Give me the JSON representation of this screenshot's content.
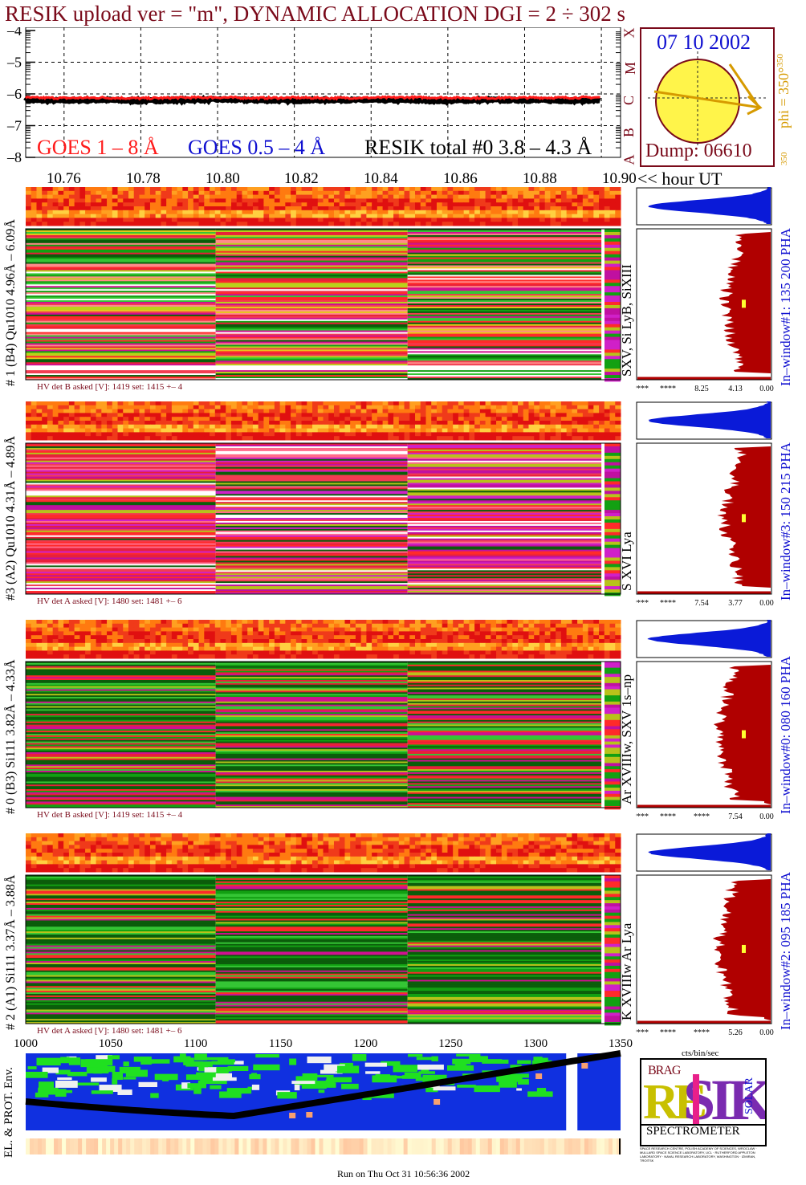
{
  "header": {
    "title": "RESIK upload ver = \"m\", DYNAMIC ALLOCATION  DGI =   2 ÷ 302 s",
    "date": "07 10 2002",
    "dump": "Dump: 06610",
    "phi_label": "phi = 350°",
    "phi_sup": "350",
    "phi_bottom": "350",
    "goes_scale": [
      "X",
      "M",
      "C",
      "B",
      "A"
    ]
  },
  "colors": {
    "maroon": "#7a0a1a",
    "goes_red": "#ff1a1a",
    "goes_blue": "#1010d0",
    "phi_orange": "#d69a00",
    "sun": "#fff44a",
    "pha_blue": "#0a1ad8",
    "pha_red": "#b00000"
  },
  "goes_legend": {
    "goes18": "GOES 1 – 8 Å",
    "goes054": "GOES 0.5 – 4 Å",
    "resik_total": "RESIK total #0  3.8 – 4.3 Å"
  },
  "time_axis": {
    "ticks": [
      "10.76",
      "10.78",
      "10.80",
      "10.82",
      "10.84",
      "10.86",
      "10.88",
      "10.90"
    ],
    "unit": "<< hour UT"
  },
  "channels": [
    {
      "ylabel": "# 1 (B4) Qu1010 4.96Å – 6.09Å",
      "line_label": "SXV, Si LyB, SiXIII",
      "hv": "HV det B asked [V]:  1419 set:  1415 +–    4",
      "window": "In–window#1:  135 200 PHA",
      "axis": [
        "****",
        "****",
        "8.25",
        "4.13",
        "0.00"
      ]
    },
    {
      "ylabel": "#3 (A2) Qu1010  4.31Å – 4.89Å",
      "line_label": "S XVI Lya",
      "hv": "HV det A asked [V]:  1480 set:  1481 +–    6",
      "window": "In–window#3:  150 215 PHA",
      "axis": [
        "****",
        "****",
        "7.54",
        "3.77",
        "0.00"
      ]
    },
    {
      "ylabel": "# 0 (B3) Si111  3.82Å – 4.33Å",
      "line_label": "Ar XVIIIw,  SXV 1s–np",
      "hv": "HV det B asked [V]:  1419 set:  1415 +–    4",
      "window": "In–window#0:  080 160 PHA",
      "axis": [
        "****",
        "****",
        "****",
        "7.54",
        "0.00"
      ]
    },
    {
      "ylabel": "# 2 (A1) Si111  3.37Å – 3.88Å",
      "line_label": "K XVIIIw  Ar Lya",
      "hv": "HV det A asked [V]:  1480 set:  1481 +–    6",
      "window": "In–window#2:  095 185 PHA",
      "axis": [
        "****",
        "****",
        "****",
        "5.26",
        "0.00"
      ]
    }
  ],
  "env": {
    "ylabel": "EL. & PROT. Env.",
    "ticks": [
      "1000",
      "1050",
      "1100",
      "1150",
      "1200",
      "1250",
      "1300",
      "1350"
    ],
    "unit": "cts/bin/sec"
  },
  "logo": {
    "top": "BRAG",
    "left": "RE",
    "mid": "SIK",
    "right": "SOLAR",
    "bottom": "SPECTROMETER",
    "fine_print": "SPACE RESEARCH CENTRE, POLISH ACADEMY OF SCIENCES, WROCLAW · MULLARD SPACE SCIENCE LABORATORY, UCL · RUTHERFORD APPLETON LABORATORY · NAVAL RESEARCH LABORATORY, WASHINGTON · IZMIRAN, TROITSK"
  },
  "footer": "Run on Thu Oct 31 10:56:36 2002",
  "chart_data": [
    {
      "type": "line",
      "title": "",
      "x": [
        10.75,
        10.76,
        10.77,
        10.78,
        10.79,
        10.8,
        10.81,
        10.82,
        10.83,
        10.84,
        10.85,
        10.86,
        10.87,
        10.88,
        10.89,
        10.9
      ],
      "series": [
        {
          "name": "GOES 1 – 8 Å",
          "values": [
            -6.12,
            -6.13,
            -6.12,
            -6.14,
            -6.12,
            -6.11,
            -6.13,
            -6.12,
            -6.13,
            -6.12,
            -6.11,
            -6.12,
            -6.13,
            -6.12,
            -6.12,
            -6.11
          ]
        },
        {
          "name": "RESIK total #0  3.8 – 4.3 Å",
          "values": [
            -6.2,
            -6.21,
            -6.19,
            -6.22,
            -6.2,
            -6.18,
            -6.2,
            -6.21,
            -6.19,
            -6.2,
            -6.2,
            -6.22,
            -6.19,
            -6.2,
            -6.21,
            -6.2
          ]
        }
      ],
      "yticks": [
        "–4",
        "–5",
        "–6",
        "–7",
        "–8"
      ],
      "ylim": [
        -8,
        -3.9
      ],
      "xlim": [
        10.75,
        10.905
      ],
      "grid": true
    },
    {
      "type": "heatmap",
      "title": "",
      "xlim": [
        10.75,
        10.905
      ],
      "xlabel": "hour UT",
      "panels": [
        "# 1 (B4) Qu1010 4.96Å – 6.09Å",
        "#3 (A2) Qu1010  4.31Å – 4.89Å",
        "# 0 (B3) Si111  3.82Å – 4.33Å",
        "# 2 (A1) Si111  3.37Å – 3.88Å"
      ],
      "time_segments_hour_ut": [
        10.75,
        10.7995,
        10.8495,
        10.9
      ]
    },
    {
      "type": "area",
      "title": "",
      "xlabel": "cts/bin/sec",
      "panels": [
        {
          "window": "In–window#1:  135 200 PHA",
          "xticks": [
            "****",
            "****",
            "8.25",
            "4.13",
            "0.00"
          ]
        },
        {
          "window": "In–window#3:  150 215 PHA",
          "xticks": [
            "****",
            "****",
            "7.54",
            "3.77",
            "0.00"
          ]
        },
        {
          "window": "In–window#0:  080 160 PHA",
          "xticks": [
            "****",
            "****",
            "****",
            "7.54",
            "0.00"
          ]
        },
        {
          "window": "In–window#2:  095 185 PHA",
          "xticks": [
            "****",
            "****",
            "****",
            "5.26",
            "0.00"
          ]
        }
      ]
    },
    {
      "type": "heatmap",
      "title": "",
      "ylabel": "EL. & PROT. Env.",
      "xticks": [
        "1000",
        "1050",
        "1100",
        "1150",
        "1200",
        "1250",
        "1300",
        "1350"
      ],
      "xlim": [
        1000,
        1350
      ]
    }
  ]
}
